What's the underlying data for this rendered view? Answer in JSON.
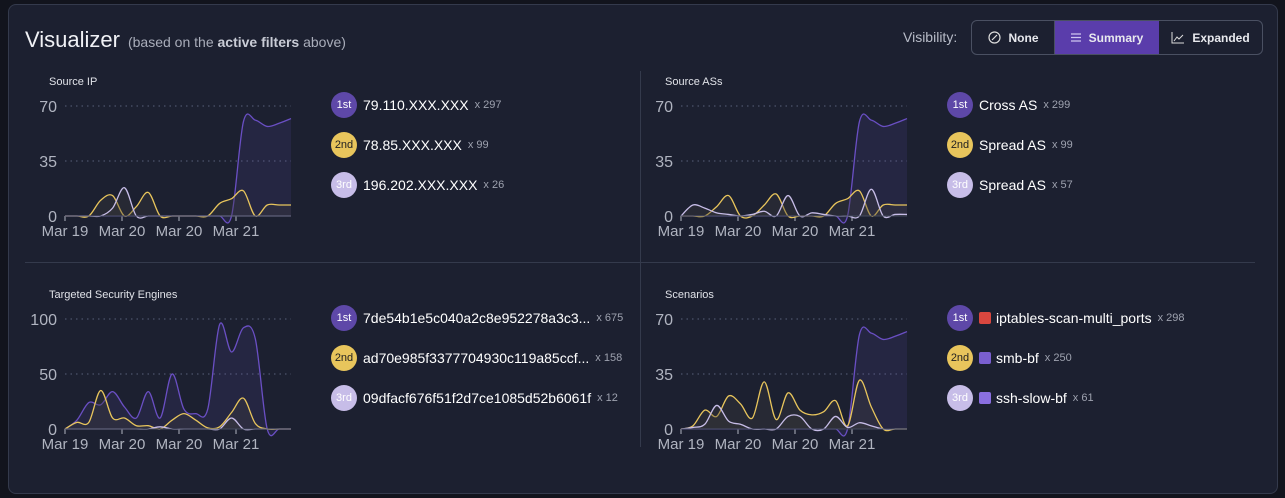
{
  "header": {
    "title": "Visualizer",
    "subtitle_pre": "(based on the",
    "subtitle_bold": "active filters",
    "subtitle_post": "above)"
  },
  "visibility": {
    "label": "Visibility:",
    "options": [
      {
        "label": "None",
        "icon": "circle-slash-icon"
      },
      {
        "label": "Summary",
        "icon": "list-icon",
        "active": true
      },
      {
        "label": "Expanded",
        "icon": "line-chart-icon"
      }
    ]
  },
  "colors": {
    "first": "#6a4fc4",
    "second": "#e8c55c",
    "third": "#c7bde8",
    "active_button": "#5a3dab"
  },
  "sections": [
    {
      "title": "Source IP",
      "y_ticks": [
        70,
        35,
        0
      ],
      "x_ticks": [
        "Mar 19",
        "Mar 20",
        "Mar 20",
        "Mar 21"
      ],
      "items": [
        {
          "rank": "1st",
          "name": "79.110.XXX.XXX",
          "count": "x 297"
        },
        {
          "rank": "2nd",
          "name": "78.85.XXX.XXX",
          "count": "x 99"
        },
        {
          "rank": "3rd",
          "name": "196.202.XXX.XXX",
          "count": "x 26"
        }
      ],
      "series": [
        [
          0,
          0,
          0,
          0,
          0,
          0,
          0,
          0,
          0,
          0,
          0,
          0,
          0,
          0,
          0,
          60,
          61,
          57,
          59,
          62
        ],
        [
          0,
          0,
          0,
          10,
          13,
          0,
          6,
          15,
          0,
          0,
          0,
          0,
          0,
          8,
          11,
          16,
          0,
          7,
          7,
          7
        ],
        [
          0,
          0,
          0,
          0,
          5,
          18,
          0,
          0,
          0,
          0,
          0,
          0,
          0,
          0,
          0,
          0,
          0,
          0,
          0,
          0
        ]
      ],
      "ymax": 70
    },
    {
      "title": "Source ASs",
      "y_ticks": [
        70,
        35,
        0
      ],
      "x_ticks": [
        "Mar 19",
        "Mar 20",
        "Mar 20",
        "Mar 21"
      ],
      "items": [
        {
          "rank": "1st",
          "name": "Cross AS",
          "count": "x 299"
        },
        {
          "rank": "2nd",
          "name": "Spread AS",
          "count": "x 99"
        },
        {
          "rank": "3rd",
          "name": "Spread AS",
          "count": "x 57"
        }
      ],
      "series": [
        [
          0,
          0,
          0,
          0,
          0,
          0,
          0,
          0,
          0,
          0,
          0,
          0,
          0,
          0,
          0,
          60,
          61,
          57,
          59,
          62
        ],
        [
          0,
          0,
          0,
          6,
          13,
          0,
          0,
          7,
          14,
          0,
          0,
          0,
          0,
          8,
          11,
          16,
          0,
          7,
          7,
          7
        ],
        [
          0,
          7,
          5,
          2,
          1,
          0,
          1,
          3,
          0,
          13,
          0,
          2,
          1,
          0,
          0,
          0,
          17,
          0,
          1,
          1
        ]
      ],
      "ymax": 70
    },
    {
      "title": "Targeted Security Engines",
      "y_ticks": [
        100,
        50,
        0
      ],
      "x_ticks": [
        "Mar 19",
        "Mar 20",
        "Mar 20",
        "Mar 21"
      ],
      "items": [
        {
          "rank": "1st",
          "name": "7de54b1e5c040a2c8e952278a3c3...",
          "count": "x 675"
        },
        {
          "rank": "2nd",
          "name": "ad70e985f3377704930c119a85ccf...",
          "count": "x 158"
        },
        {
          "rank": "3rd",
          "name": "09dfacf676f51f2d7ce1085d52b6061f",
          "count": "x 12"
        }
      ],
      "series": [
        [
          0,
          8,
          24,
          22,
          34,
          20,
          10,
          34,
          10,
          50,
          18,
          14,
          18,
          95,
          70,
          92,
          82,
          0,
          0,
          0
        ],
        [
          0,
          6,
          6,
          35,
          10,
          10,
          3,
          3,
          0,
          8,
          14,
          8,
          1,
          2,
          15,
          28,
          5,
          0,
          0,
          0
        ],
        [
          0,
          0,
          0,
          0,
          0,
          0,
          0,
          0,
          2,
          0,
          0,
          0,
          0,
          0,
          10,
          0,
          0,
          0,
          0,
          0
        ]
      ],
      "ymax": 100
    },
    {
      "title": "Scenarios",
      "y_ticks": [
        70,
        35,
        0
      ],
      "x_ticks": [
        "Mar 19",
        "Mar 20",
        "Mar 20",
        "Mar 21"
      ],
      "items": [
        {
          "rank": "1st",
          "name": "iptables-scan-multi_ports",
          "count": "x 298",
          "icon": "red-terminal-icon",
          "icon_color": "#d9473f"
        },
        {
          "rank": "2nd",
          "name": "smb-bf",
          "count": "x 250",
          "icon": "purple-terminal-icon",
          "icon_color": "#7a5fd0"
        },
        {
          "rank": "3rd",
          "name": "ssh-slow-bf",
          "count": "x 61",
          "icon": "purple-ghost-icon",
          "icon_color": "#8a6fe0"
        }
      ],
      "series": [
        [
          0,
          0,
          0,
          0,
          0,
          0,
          0,
          0,
          0,
          0,
          0,
          0,
          0,
          0,
          0,
          60,
          61,
          57,
          59,
          62
        ],
        [
          0,
          2,
          12,
          8,
          21,
          16,
          7,
          30,
          6,
          23,
          12,
          9,
          11,
          18,
          2,
          31,
          14,
          0,
          0,
          0
        ],
        [
          0,
          1,
          3,
          15,
          5,
          3,
          0,
          0,
          0,
          8,
          8,
          0,
          0,
          8,
          1,
          4,
          2,
          0,
          0,
          0
        ]
      ],
      "ymax": 70
    }
  ]
}
